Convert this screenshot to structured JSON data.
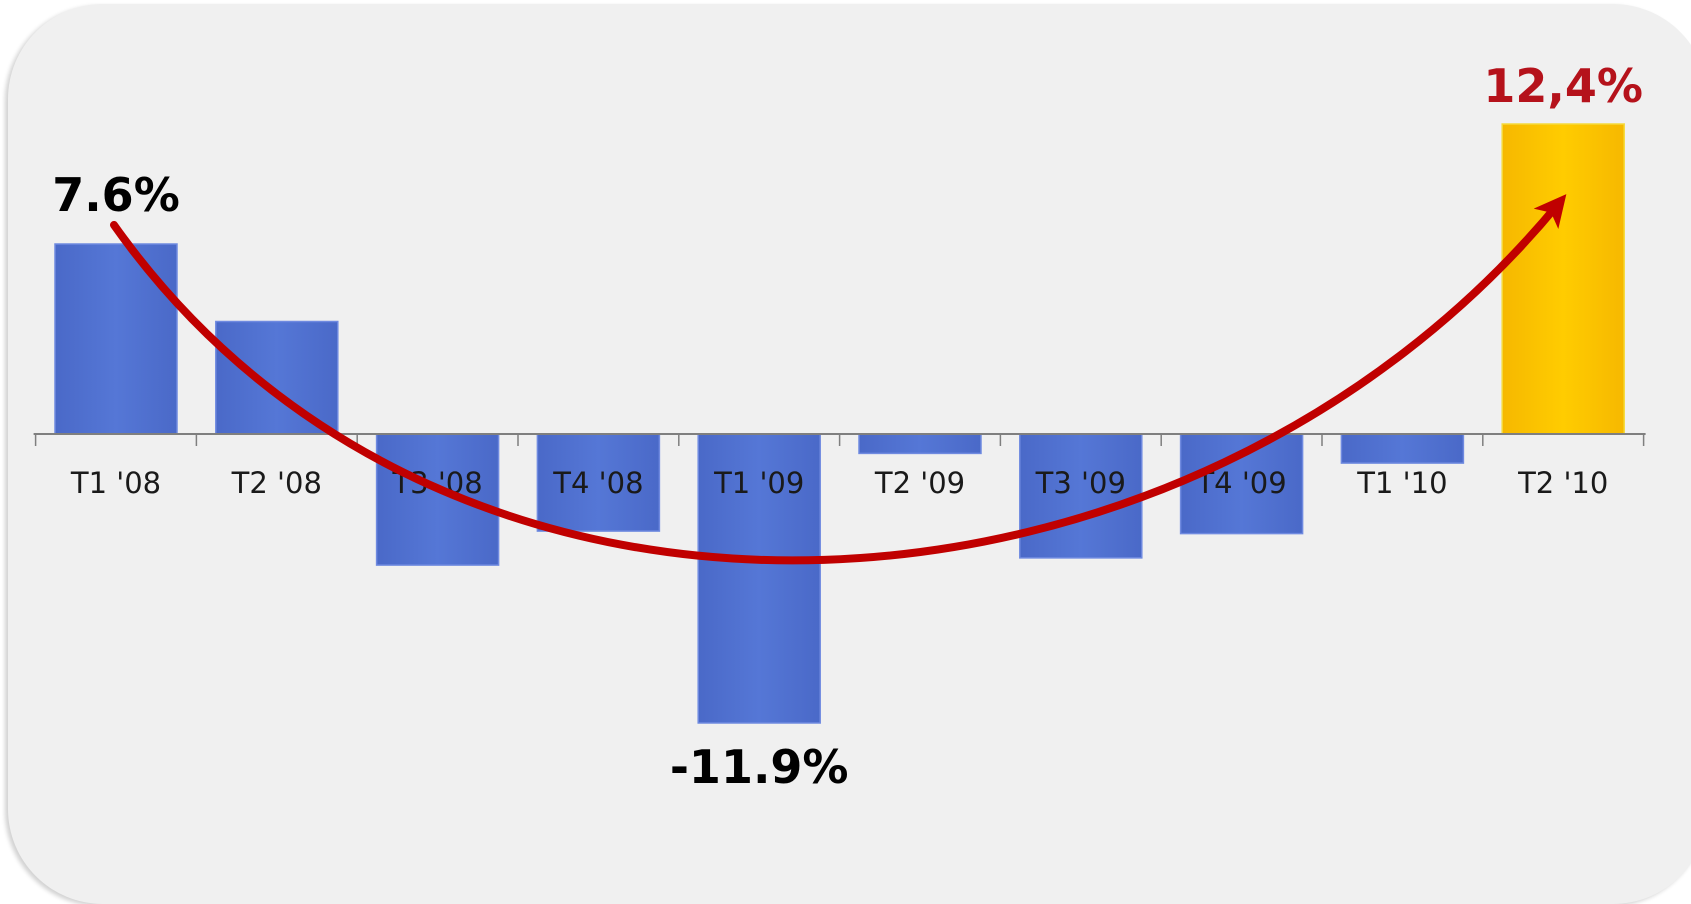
{
  "chart_data": {
    "type": "bar",
    "categories": [
      "T1 '08",
      "T2 '08",
      "T3 '08",
      "T4 '08",
      "T1 '09",
      "T2 '09",
      "T3 '09",
      "T4 '09",
      "T1 '10",
      "T2 '10"
    ],
    "values": [
      7.6,
      4.5,
      -5.4,
      -4.0,
      -11.9,
      -0.8,
      -5.1,
      -4.1,
      -1.2,
      12.4
    ],
    "ylim": [
      -11.9,
      12.4
    ],
    "grid": false,
    "legend": "none",
    "annotations": [
      {
        "category": "T1 '08",
        "text": "7.6%",
        "color": "#000000"
      },
      {
        "category": "T1 '09",
        "text": "-11.9%",
        "color": "#000000"
      },
      {
        "category": "T2 '10",
        "text": "12,4%",
        "color": "#b5121b"
      }
    ],
    "trend_arrow": {
      "from": "T1 '08",
      "to": "T2 '10",
      "color": "#c00000"
    },
    "colors": {
      "bar": "#5173d2",
      "bar_edge": "#6f8ae0",
      "highlight_bar": "#ffc000",
      "highlight_edge": "#f5da3b",
      "axis": "#7f7f7f",
      "panel": "#f0f0f0"
    },
    "highlight_category": "T2 '10"
  }
}
